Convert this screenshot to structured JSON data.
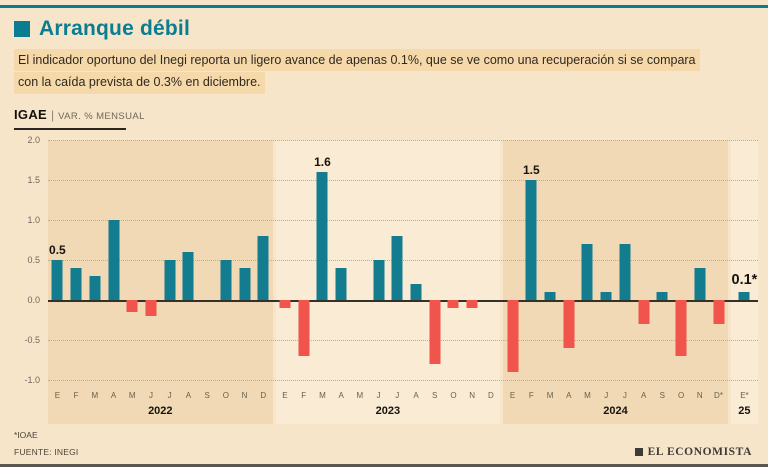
{
  "colors": {
    "teal": "#137c8f",
    "red": "#f0544d",
    "background": "#f7e5ca",
    "band_dark": "#f0d9b4",
    "band_light": "#f9ebd4",
    "highlight": "#f5d9ab"
  },
  "header": {
    "title": "Arranque débil",
    "subtitle_line1": "El indicador oportuno del Inegi reporta un ligero avance de apenas 0.1%, que se ve como una recuperación si se compara",
    "subtitle_line2": "con la caída prevista de 0.3% en diciembre."
  },
  "chart_header": {
    "name": "IGAE",
    "separator": "|",
    "unit": "VAR. % MENSUAL"
  },
  "chart_data": {
    "type": "bar",
    "title": "IGAE | VAR. % MENSUAL",
    "ylabel": "VAR. % MENSUAL",
    "ylim": [
      -1.0,
      2.0
    ],
    "yticks": [
      "2.0",
      "1.5",
      "1.0",
      "0.5",
      "0.0",
      "-0.5",
      "-1.0"
    ],
    "grid": "dotted",
    "groups": [
      {
        "year": "2022",
        "shade": "dark",
        "months": [
          "E",
          "F",
          "M",
          "A",
          "M",
          "J",
          "J",
          "A",
          "S",
          "O",
          "N",
          "D"
        ],
        "values": [
          0.5,
          0.4,
          0.3,
          1.0,
          -0.15,
          -0.2,
          0.5,
          0.6,
          0,
          0.5,
          0.4,
          0.8
        ]
      },
      {
        "year": "2023",
        "shade": "light",
        "months": [
          "E",
          "F",
          "M",
          "A",
          "M",
          "J",
          "J",
          "A",
          "S",
          "O",
          "N",
          "D"
        ],
        "values": [
          -0.1,
          -0.7,
          1.6,
          0.4,
          0,
          0.5,
          0.8,
          0.2,
          -0.8,
          -0.1,
          -0.1,
          0
        ]
      },
      {
        "year": "2024",
        "shade": "dark",
        "months": [
          "E",
          "F",
          "M",
          "A",
          "M",
          "J",
          "J",
          "A",
          "S",
          "O",
          "N",
          "D*"
        ],
        "values": [
          -0.9,
          1.5,
          0.1,
          -0.6,
          0.7,
          0.1,
          0.7,
          -0.3,
          0.1,
          -0.7,
          0.4,
          -0.3
        ]
      },
      {
        "year": "25",
        "shade": "light",
        "months": [
          "E*"
        ],
        "values": [
          0.1
        ]
      }
    ],
    "annotations": [
      {
        "group": 0,
        "index": 0,
        "text": "0.5",
        "big": false
      },
      {
        "group": 1,
        "index": 2,
        "text": "1.6",
        "big": false
      },
      {
        "group": 2,
        "index": 1,
        "text": "1.5",
        "big": false
      },
      {
        "group": 3,
        "index": 0,
        "text": "0.1*",
        "big": true
      }
    ]
  },
  "footer": {
    "note": "*IOAE",
    "source": "FUENTE: INEGI",
    "brand": "EL ECONOMISTA"
  }
}
